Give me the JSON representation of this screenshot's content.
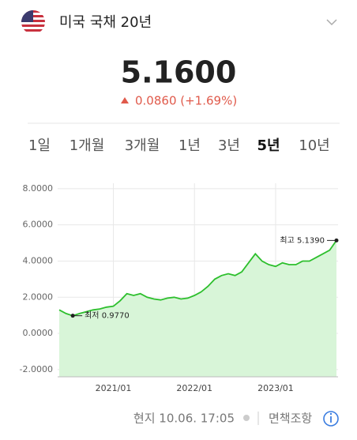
{
  "header": {
    "title": "미국 국채 20년"
  },
  "quote": {
    "price": "5.1600",
    "change": "0.0860 (+1.69%)"
  },
  "tabs": [
    "1일",
    "1개월",
    "3개월",
    "1년",
    "3년",
    "5년",
    "10년"
  ],
  "active_tab": 5,
  "chart_data": {
    "type": "area",
    "x": [
      "2020/05",
      "2020/06",
      "2020/07",
      "2020/08",
      "2020/09",
      "2020/10",
      "2020/11",
      "2020/12",
      "2021/01",
      "2021/02",
      "2021/03",
      "2021/04",
      "2021/05",
      "2021/06",
      "2021/07",
      "2021/08",
      "2021/09",
      "2021/10",
      "2021/11",
      "2021/12",
      "2022/01",
      "2022/02",
      "2022/03",
      "2022/04",
      "2022/05",
      "2022/06",
      "2022/07",
      "2022/08",
      "2022/09",
      "2022/10",
      "2022/11",
      "2022/12",
      "2023/01",
      "2023/02",
      "2023/03",
      "2023/04",
      "2023/05",
      "2023/06",
      "2023/07",
      "2023/08",
      "2023/09",
      "2023/10"
    ],
    "values": [
      1.3,
      1.1,
      0.977,
      1.1,
      1.2,
      1.3,
      1.35,
      1.45,
      1.5,
      1.8,
      2.2,
      2.1,
      2.2,
      2.0,
      1.9,
      1.85,
      1.95,
      2.0,
      1.9,
      1.95,
      2.1,
      2.3,
      2.6,
      3.0,
      3.2,
      3.3,
      3.2,
      3.4,
      3.9,
      4.4,
      4.0,
      3.8,
      3.7,
      3.9,
      3.8,
      3.8,
      4.0,
      4.0,
      4.2,
      4.4,
      4.6,
      5.139
    ],
    "color": "#2dbf2d",
    "fill": "#d8f5d8",
    "ylim": [
      -2.4,
      8.3
    ],
    "yticks": [
      {
        "value": -2,
        "label": "-2.0000"
      },
      {
        "value": 0,
        "label": "0.0000"
      },
      {
        "value": 2,
        "label": "2.0000"
      },
      {
        "value": 4,
        "label": "4.0000"
      },
      {
        "value": 6,
        "label": "6.0000"
      },
      {
        "value": 8,
        "label": "8.0000"
      }
    ],
    "xticks": [
      "2021/01",
      "2022/01",
      "2023/01"
    ],
    "grid": true,
    "annotations": [
      {
        "label": "최저 0.9770",
        "x": "2020/07",
        "y": 0.977,
        "side": "right"
      },
      {
        "label": "최고 5.1390",
        "x": "2023/10",
        "y": 5.139,
        "side": "left"
      }
    ]
  },
  "footer": {
    "timestamp": "현지 10.06. 17:05",
    "disclaimer": "면책조항"
  }
}
